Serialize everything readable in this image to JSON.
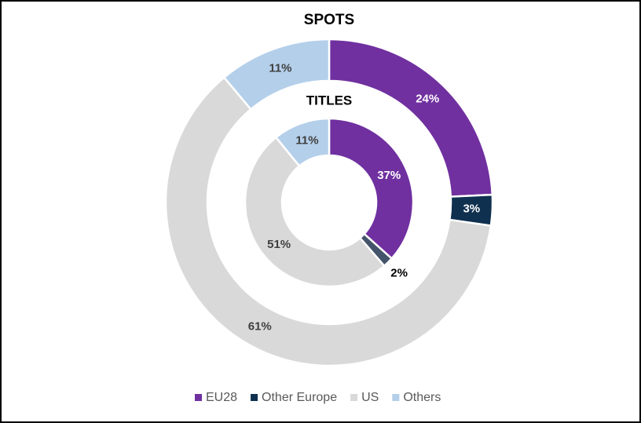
{
  "chart_data": [
    {
      "type": "donut",
      "title": "SPOTS",
      "categories": [
        "EU28",
        "Other Europe",
        "US",
        "Others"
      ],
      "values": [
        24,
        3,
        61,
        11
      ],
      "value_labels": [
        "24%",
        "3%",
        "61%",
        "11%"
      ],
      "colors": [
        "#7030a0",
        "#10304f",
        "#d9d9d9",
        "#b4cfea"
      ],
      "legend": "bottom"
    },
    {
      "type": "donut",
      "title": "TITLES",
      "categories": [
        "EU28",
        "Other Europe",
        "US",
        "Others"
      ],
      "values": [
        37,
        2,
        51,
        11
      ],
      "value_labels": [
        "37%",
        "2%",
        "51%",
        "11%"
      ],
      "colors": [
        "#7030a0",
        "#44546a",
        "#d9d9d9",
        "#b4cfea"
      ]
    }
  ]
}
